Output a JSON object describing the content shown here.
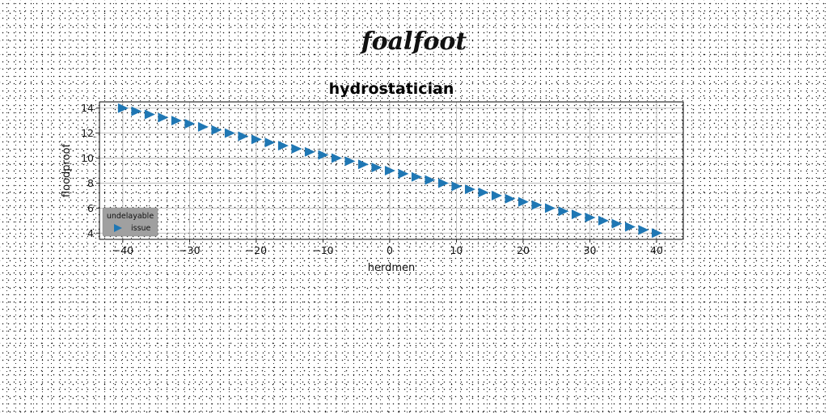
{
  "figure_title": "foalfoot",
  "chart_data": {
    "type": "scatter",
    "title": "hydrostatician",
    "xlabel": "herdmen",
    "ylabel": "floodproof",
    "xlim": [
      -43.5,
      44
    ],
    "ylim": [
      3.5,
      14.5
    ],
    "xticks": [
      -40,
      -30,
      -20,
      -10,
      0,
      10,
      20,
      30,
      40
    ],
    "yticks": [
      4,
      6,
      8,
      10,
      12,
      14
    ],
    "grid": true,
    "marker": "triangle-right",
    "color": "#1f77b4",
    "legend": {
      "title": "undelayable",
      "placement": "lower-left",
      "background": "#a0a0a0"
    },
    "series": [
      {
        "name": "issue",
        "x": [
          -40,
          -38,
          -36,
          -34,
          -32,
          -30,
          -28,
          -26,
          -24,
          -22,
          -20,
          -18,
          -16,
          -14,
          -12,
          -10,
          -8,
          -6,
          -4,
          -2,
          0,
          2,
          4,
          6,
          8,
          10,
          12,
          14,
          16,
          18,
          20,
          22,
          24,
          26,
          28,
          30,
          32,
          34,
          36,
          38,
          40
        ],
        "y": [
          14,
          13.75,
          13.5,
          13.25,
          13,
          12.75,
          12.5,
          12.25,
          12,
          11.75,
          11.5,
          11.25,
          11,
          10.75,
          10.5,
          10.25,
          10,
          9.75,
          9.5,
          9.25,
          9,
          8.75,
          8.5,
          8.25,
          8,
          7.75,
          7.5,
          7.25,
          7,
          6.75,
          6.5,
          6.25,
          6,
          5.75,
          5.5,
          5.25,
          5,
          4.75,
          4.5,
          4.25,
          4
        ]
      }
    ]
  }
}
